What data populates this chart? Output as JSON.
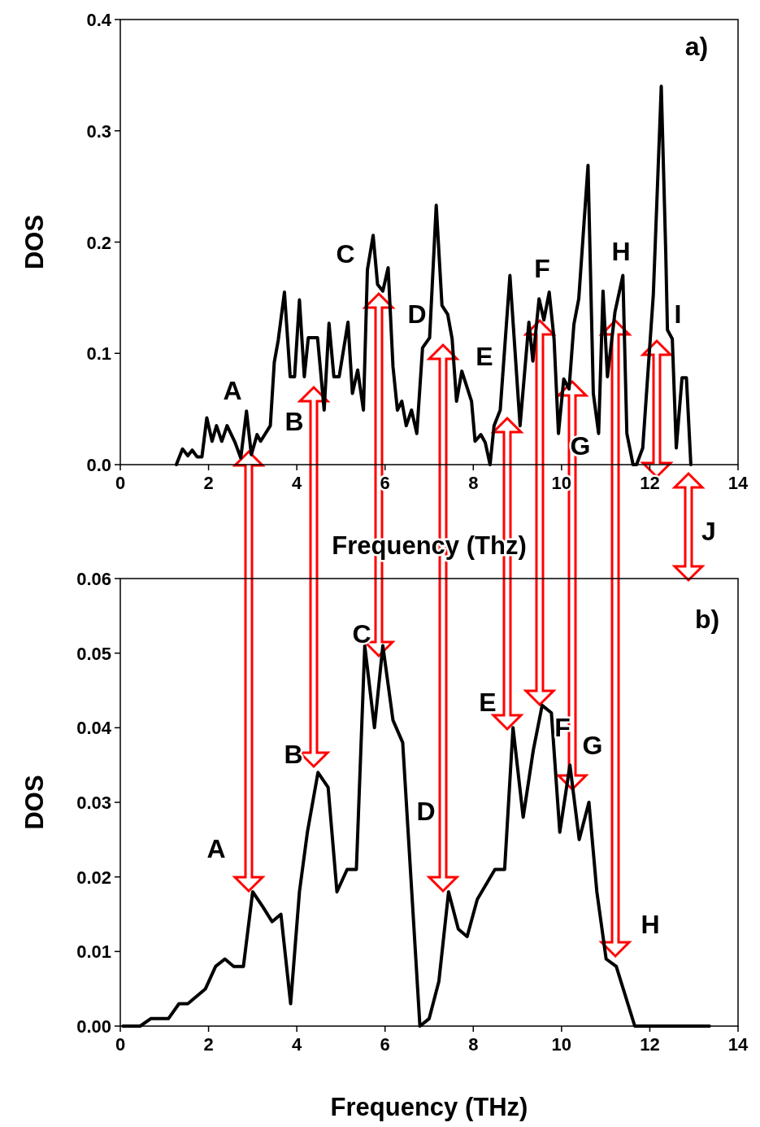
{
  "chart_data": [
    {
      "type": "line",
      "xlabel": "Frequency (Thz)",
      "ylabel": "DOS",
      "series": [
        {
          "color": "#000000",
          "x": [
            1.27,
            1.41,
            1.53,
            1.63,
            1.74,
            1.85,
            1.96,
            2.08,
            2.18,
            2.3,
            2.42,
            2.6,
            2.73,
            2.86,
            2.97,
            3.1,
            3.18,
            3.4,
            3.49,
            3.58,
            3.72,
            3.85,
            3.95,
            4.06,
            4.17,
            4.26,
            4.47,
            4.62,
            4.73,
            4.84,
            4.96,
            5.16,
            5.26,
            5.38,
            5.51,
            5.6,
            5.73,
            5.83,
            5.95,
            6.07,
            6.18,
            6.28,
            6.38,
            6.48,
            6.6,
            6.72,
            6.85,
            7.01,
            7.16,
            7.29,
            7.42,
            7.52,
            7.62,
            7.74,
            7.96,
            8.04,
            8.17,
            8.27,
            8.38,
            8.47,
            8.61,
            8.83,
            9.06,
            9.26,
            9.35,
            9.49,
            9.6,
            9.72,
            9.83,
            9.93,
            10.05,
            10.17,
            10.28,
            10.39,
            10.6,
            10.68,
            10.72,
            10.84,
            10.94,
            11.04,
            11.21,
            11.39,
            11.48,
            11.62,
            11.7,
            11.84,
            12.08,
            12.26,
            12.36,
            12.4,
            12.51,
            12.6,
            12.73,
            12.83,
            12.93
          ],
          "values": [
            0,
            0.014,
            0.008,
            0.013,
            0.007,
            0.007,
            0.042,
            0.021,
            0.035,
            0.021,
            0.035,
            0.02,
            0.006,
            0.048,
            0.009,
            0.027,
            0.021,
            0.035,
            0.092,
            0.112,
            0.155,
            0.079,
            0.079,
            0.148,
            0.079,
            0.114,
            0.114,
            0.049,
            0.127,
            0.079,
            0.079,
            0.128,
            0.064,
            0.085,
            0.049,
            0.175,
            0.206,
            0.162,
            0.156,
            0.177,
            0.088,
            0.049,
            0.057,
            0.035,
            0.049,
            0.028,
            0.105,
            0.114,
            0.233,
            0.143,
            0.135,
            0.113,
            0.057,
            0.084,
            0.057,
            0.021,
            0.027,
            0.02,
            0,
            0.035,
            0.049,
            0.17,
            0.035,
            0.128,
            0.093,
            0.149,
            0.13,
            0.155,
            0.113,
            0.028,
            0.077,
            0.068,
            0.126,
            0.149,
            0.269,
            0.132,
            0.064,
            0.028,
            0.156,
            0.079,
            0.137,
            0.17,
            0.028,
            0,
            0,
            0.015,
            0.153,
            0.34,
            0.193,
            0.121,
            0.113,
            0.015,
            0.078,
            0.078,
            0
          ]
        }
      ],
      "xlim": [
        0,
        14
      ],
      "xticks": [
        0,
        2,
        4,
        6,
        8,
        10,
        12,
        14
      ],
      "ylim": [
        0,
        0.4
      ],
      "yticks": [
        {
          "value": 0,
          "label": "0.0"
        },
        {
          "value": 0.1,
          "label": "0.1"
        },
        {
          "value": 0.2,
          "label": "0.2"
        },
        {
          "value": 0.3,
          "label": "0.3"
        },
        {
          "value": 0.4,
          "label": "0.4"
        }
      ],
      "grid": false,
      "marker": "none",
      "line_style": "solid",
      "annotations": [
        "a)",
        "J",
        "A",
        "B",
        "C",
        "D",
        "E",
        "F",
        "G",
        "H",
        "I"
      ]
    },
    {
      "type": "line",
      "xlabel": "Frequency (THz)",
      "ylabel": "DOS",
      "series": [
        {
          "color": "#000000",
          "x": [
            0.06,
            0.45,
            0.69,
            1.09,
            1.33,
            1.53,
            1.93,
            2.16,
            2.37,
            2.57,
            2.79,
            3.0,
            3.23,
            3.44,
            3.64,
            3.86,
            4.06,
            4.24,
            4.48,
            4.71,
            4.91,
            5.14,
            5.35,
            5.54,
            5.76,
            5.95,
            6.18,
            6.4,
            6.79,
            7.0,
            7.22,
            7.44,
            7.66,
            7.86,
            8.09,
            8.49,
            8.71,
            8.9,
            9.13,
            9.36,
            9.56,
            9.77,
            9.96,
            10.19,
            10.4,
            10.62,
            10.8,
            11.01,
            11.24,
            11.66,
            13.35
          ],
          "values": [
            0,
            0,
            0.001,
            0.001,
            0.003,
            0.003,
            0.005,
            0.008,
            0.009,
            0.008,
            0.008,
            0.018,
            0.016,
            0.014,
            0.015,
            0.003,
            0.018,
            0.026,
            0.034,
            0.032,
            0.018,
            0.021,
            0.021,
            0.051,
            0.04,
            0.051,
            0.041,
            0.038,
            0,
            0.001,
            0.006,
            0.018,
            0.013,
            0.012,
            0.017,
            0.021,
            0.021,
            0.04,
            0.028,
            0.037,
            0.043,
            0.042,
            0.026,
            0.035,
            0.025,
            0.03,
            0.018,
            0.009,
            0.008,
            0,
            0
          ]
        }
      ],
      "xlim": [
        0,
        14
      ],
      "xticks": [
        0,
        2,
        4,
        6,
        8,
        10,
        12,
        14
      ],
      "ylim": [
        0,
        0.06
      ],
      "yticks": [
        {
          "value": 0,
          "label": "0.00"
        },
        {
          "value": 0.01,
          "label": "0.01"
        },
        {
          "value": 0.02,
          "label": "0.02"
        },
        {
          "value": 0.03,
          "label": "0.03"
        },
        {
          "value": 0.04,
          "label": "0.04"
        },
        {
          "value": 0.05,
          "label": "0.05"
        },
        {
          "value": 0.06,
          "label": "0.06"
        }
      ],
      "grid": false,
      "marker": "none",
      "line_style": "solid",
      "annotations": [
        "b)",
        "A",
        "B",
        "C",
        "D",
        "E",
        "F",
        "G",
        "H"
      ]
    }
  ]
}
